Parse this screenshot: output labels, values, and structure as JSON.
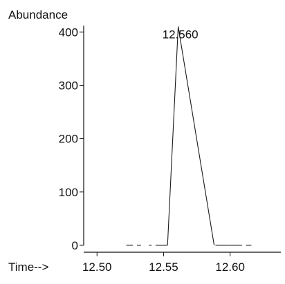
{
  "chart_data": {
    "type": "line",
    "title": "",
    "ylabel": "Abundance",
    "xlabel": "Time-->",
    "xlim": [
      12.49,
      12.635
    ],
    "ylim": [
      0,
      412
    ],
    "x_ticks": [
      12.5,
      12.55,
      12.6
    ],
    "x_tick_labels": [
      "12.50",
      "12.55",
      "12.60"
    ],
    "y_ticks": [
      0,
      100,
      200,
      300,
      400
    ],
    "y_tick_labels": [
      "0",
      "100",
      "200",
      "300",
      "400"
    ],
    "grid": false,
    "series": [
      {
        "x": [
          12.553,
          12.561,
          12.588
        ],
        "y": [
          0,
          410,
          0
        ]
      }
    ],
    "baseline_dashes": [
      [
        12.522,
        12.527
      ],
      [
        12.53,
        12.533
      ],
      [
        12.539,
        12.541
      ],
      [
        12.544,
        12.553
      ],
      [
        12.589,
        12.598
      ],
      [
        12.598,
        12.609
      ],
      [
        12.612,
        12.616
      ]
    ],
    "annotations": [
      {
        "text": "12.560",
        "x": 12.561,
        "y": 410
      }
    ],
    "colors": {
      "line": "#1a1a1a",
      "axis": "#111111",
      "background": "#ffffff"
    }
  }
}
